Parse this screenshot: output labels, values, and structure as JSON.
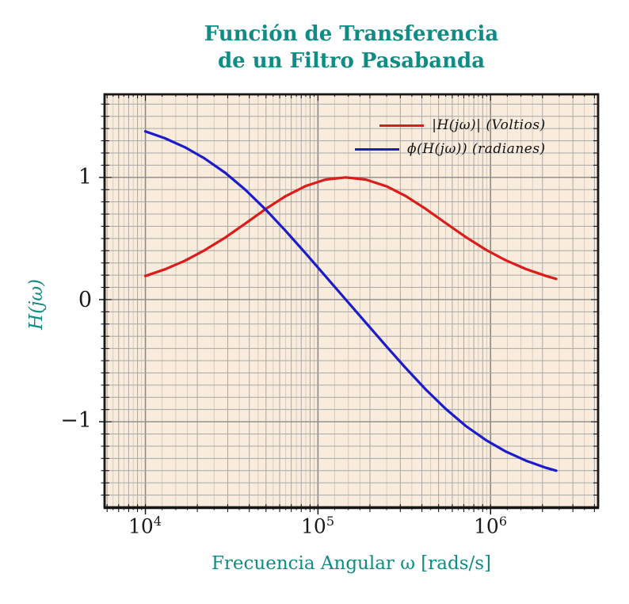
{
  "title": {
    "line1": "Función de Transferencia",
    "line2": "de un Filtro Pasabanda"
  },
  "colors": {
    "title_text": "#0f8c84",
    "axis_label_text": "#0f8c84",
    "tick_label_text": "#1a1a1a",
    "plot_bg": "#f9ecdc",
    "grid_major": "#8a8a8a",
    "grid_minor": "#a8a8a8",
    "grid_fine": "#cdc5b8",
    "frame": "#161616",
    "magnitude_line": "#dc1b1b",
    "phase_line": "#1c1ccd"
  },
  "legend": {
    "entries": [
      {
        "label": "|H(jω)| (Voltios)",
        "series": "magnitude"
      },
      {
        "label": "ϕ(H(jω)) (radianes)",
        "series": "phase"
      }
    ]
  },
  "axes": {
    "x": {
      "label": "Frecuencia Angular ω [rads/s]",
      "scale": "log",
      "min": 5800,
      "max": 4200000,
      "ticks": [
        {
          "value": 10000,
          "base": "10",
          "exp": "4"
        },
        {
          "value": 100000,
          "base": "10",
          "exp": "5"
        },
        {
          "value": 1000000,
          "base": "10",
          "exp": "6"
        }
      ]
    },
    "y": {
      "label": "H(jω)",
      "scale": "linear",
      "min": -1.7,
      "max": 1.68,
      "grid_step": 0.1,
      "ticks": [
        {
          "value": 1,
          "label": "1"
        },
        {
          "value": 0,
          "label": "0"
        },
        {
          "value": -1,
          "label": "−1"
        }
      ]
    }
  },
  "chart_data": {
    "type": "line",
    "title": "Función de Transferencia de un Filtro Pasabanda",
    "xlabel": "Frecuencia Angular ω [rads/s]",
    "ylabel": "H(jω)",
    "x_scale": "log",
    "xlim": [
      5800,
      4200000
    ],
    "ylim": [
      -1.7,
      1.68
    ],
    "grid": "both",
    "legend_position": "top-right",
    "x": [
      10000,
      13000,
      17000,
      22000,
      29000,
      38000,
      50000,
      65000,
      85000,
      110000,
      145000,
      190000,
      250000,
      320000,
      420000,
      550000,
      720000,
      940000,
      1220000,
      1600000,
      2100000,
      2400000
    ],
    "series": [
      {
        "id": "magnitude",
        "name": "|H(jω)| (Voltios)",
        "values": [
          0.193,
          0.248,
          0.319,
          0.403,
          0.508,
          0.623,
          0.743,
          0.847,
          0.93,
          0.982,
          1.0,
          0.982,
          0.927,
          0.85,
          0.743,
          0.626,
          0.511,
          0.408,
          0.323,
          0.25,
          0.193,
          0.169
        ]
      },
      {
        "id": "phase",
        "name": "ϕ(H(jω)) (radianes)",
        "values": [
          1.377,
          1.32,
          1.246,
          1.156,
          1.038,
          0.898,
          0.734,
          0.562,
          0.377,
          0.195,
          0.0,
          -0.191,
          -0.385,
          -0.555,
          -0.734,
          -0.895,
          -1.035,
          -1.15,
          -1.242,
          -1.318,
          -1.377,
          -1.4
        ]
      }
    ]
  }
}
